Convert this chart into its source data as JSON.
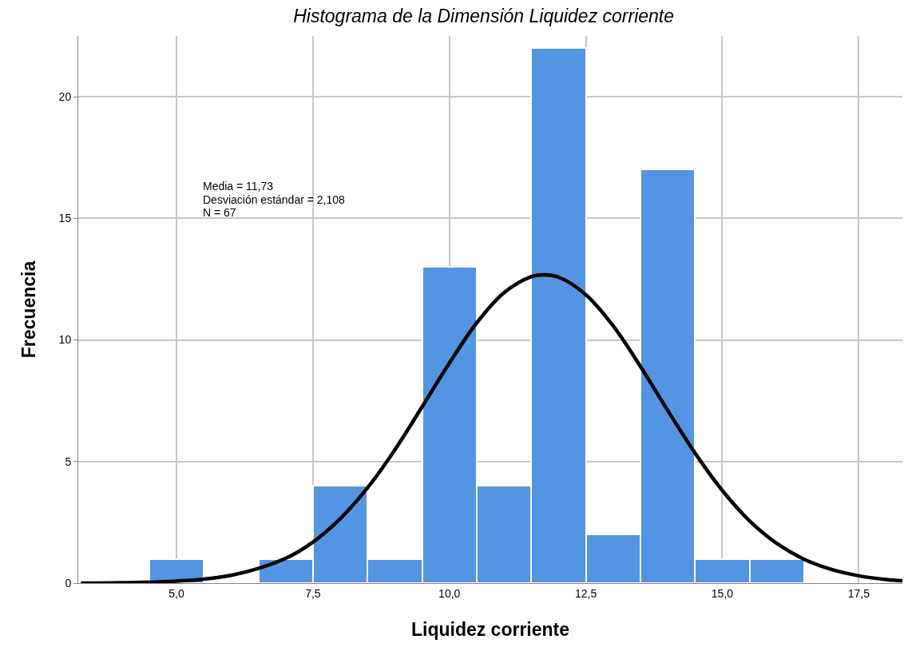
{
  "chart_data": {
    "type": "histogram",
    "title": "Histograma de la Dimensión Liquidez corriente",
    "xlabel": "Liquidez corriente",
    "ylabel": "Frecuencia",
    "bins": [
      4.5,
      5.5,
      6.5,
      7.5,
      8.5,
      9.5,
      10.5,
      11.5,
      12.5,
      13.5,
      14.5,
      15.5,
      16.5
    ],
    "values": [
      1,
      0,
      1,
      4,
      1,
      13,
      4,
      22,
      2,
      17,
      1,
      1
    ],
    "color": "#5495e3",
    "series": [
      {
        "type": "line",
        "color": "#000000",
        "x": [
          3.25,
          4,
          5,
          6,
          7,
          7.5,
          8,
          8.5,
          9,
          9.5,
          10,
          10.5,
          11,
          11.5,
          11.73,
          12,
          12.5,
          13,
          13.5,
          14,
          14.5,
          15,
          15.5,
          16,
          16.5,
          17,
          17.5,
          18,
          18.3
        ],
        "values": [
          0,
          0.02,
          0.08,
          0.32,
          1.02,
          1.69,
          2.65,
          3.92,
          5.48,
          7.25,
          9.05,
          10.7,
          11.94,
          12.6,
          12.68,
          12.58,
          11.86,
          10.58,
          8.91,
          7.1,
          5.35,
          3.81,
          2.56,
          1.63,
          0.98,
          0.56,
          0.3,
          0.15,
          0.1
        ]
      }
    ],
    "annotations": [
      "Media = 11,73",
      "Desviación estándar = 2,108",
      "N = 67"
    ],
    "xlim": [
      3.2,
      18.3
    ],
    "ylim": [
      0,
      22.5
    ],
    "xticks": [
      {
        "value": 5,
        "label": "5,0"
      },
      {
        "value": 7.5,
        "label": "7,5"
      },
      {
        "value": 10,
        "label": "10,0"
      },
      {
        "value": 12.5,
        "label": "12,5"
      },
      {
        "value": 15,
        "label": "15,0"
      },
      {
        "value": 17.5,
        "label": "17,5"
      }
    ],
    "yticks": [
      0,
      5,
      10,
      15,
      20
    ],
    "grid": true
  }
}
